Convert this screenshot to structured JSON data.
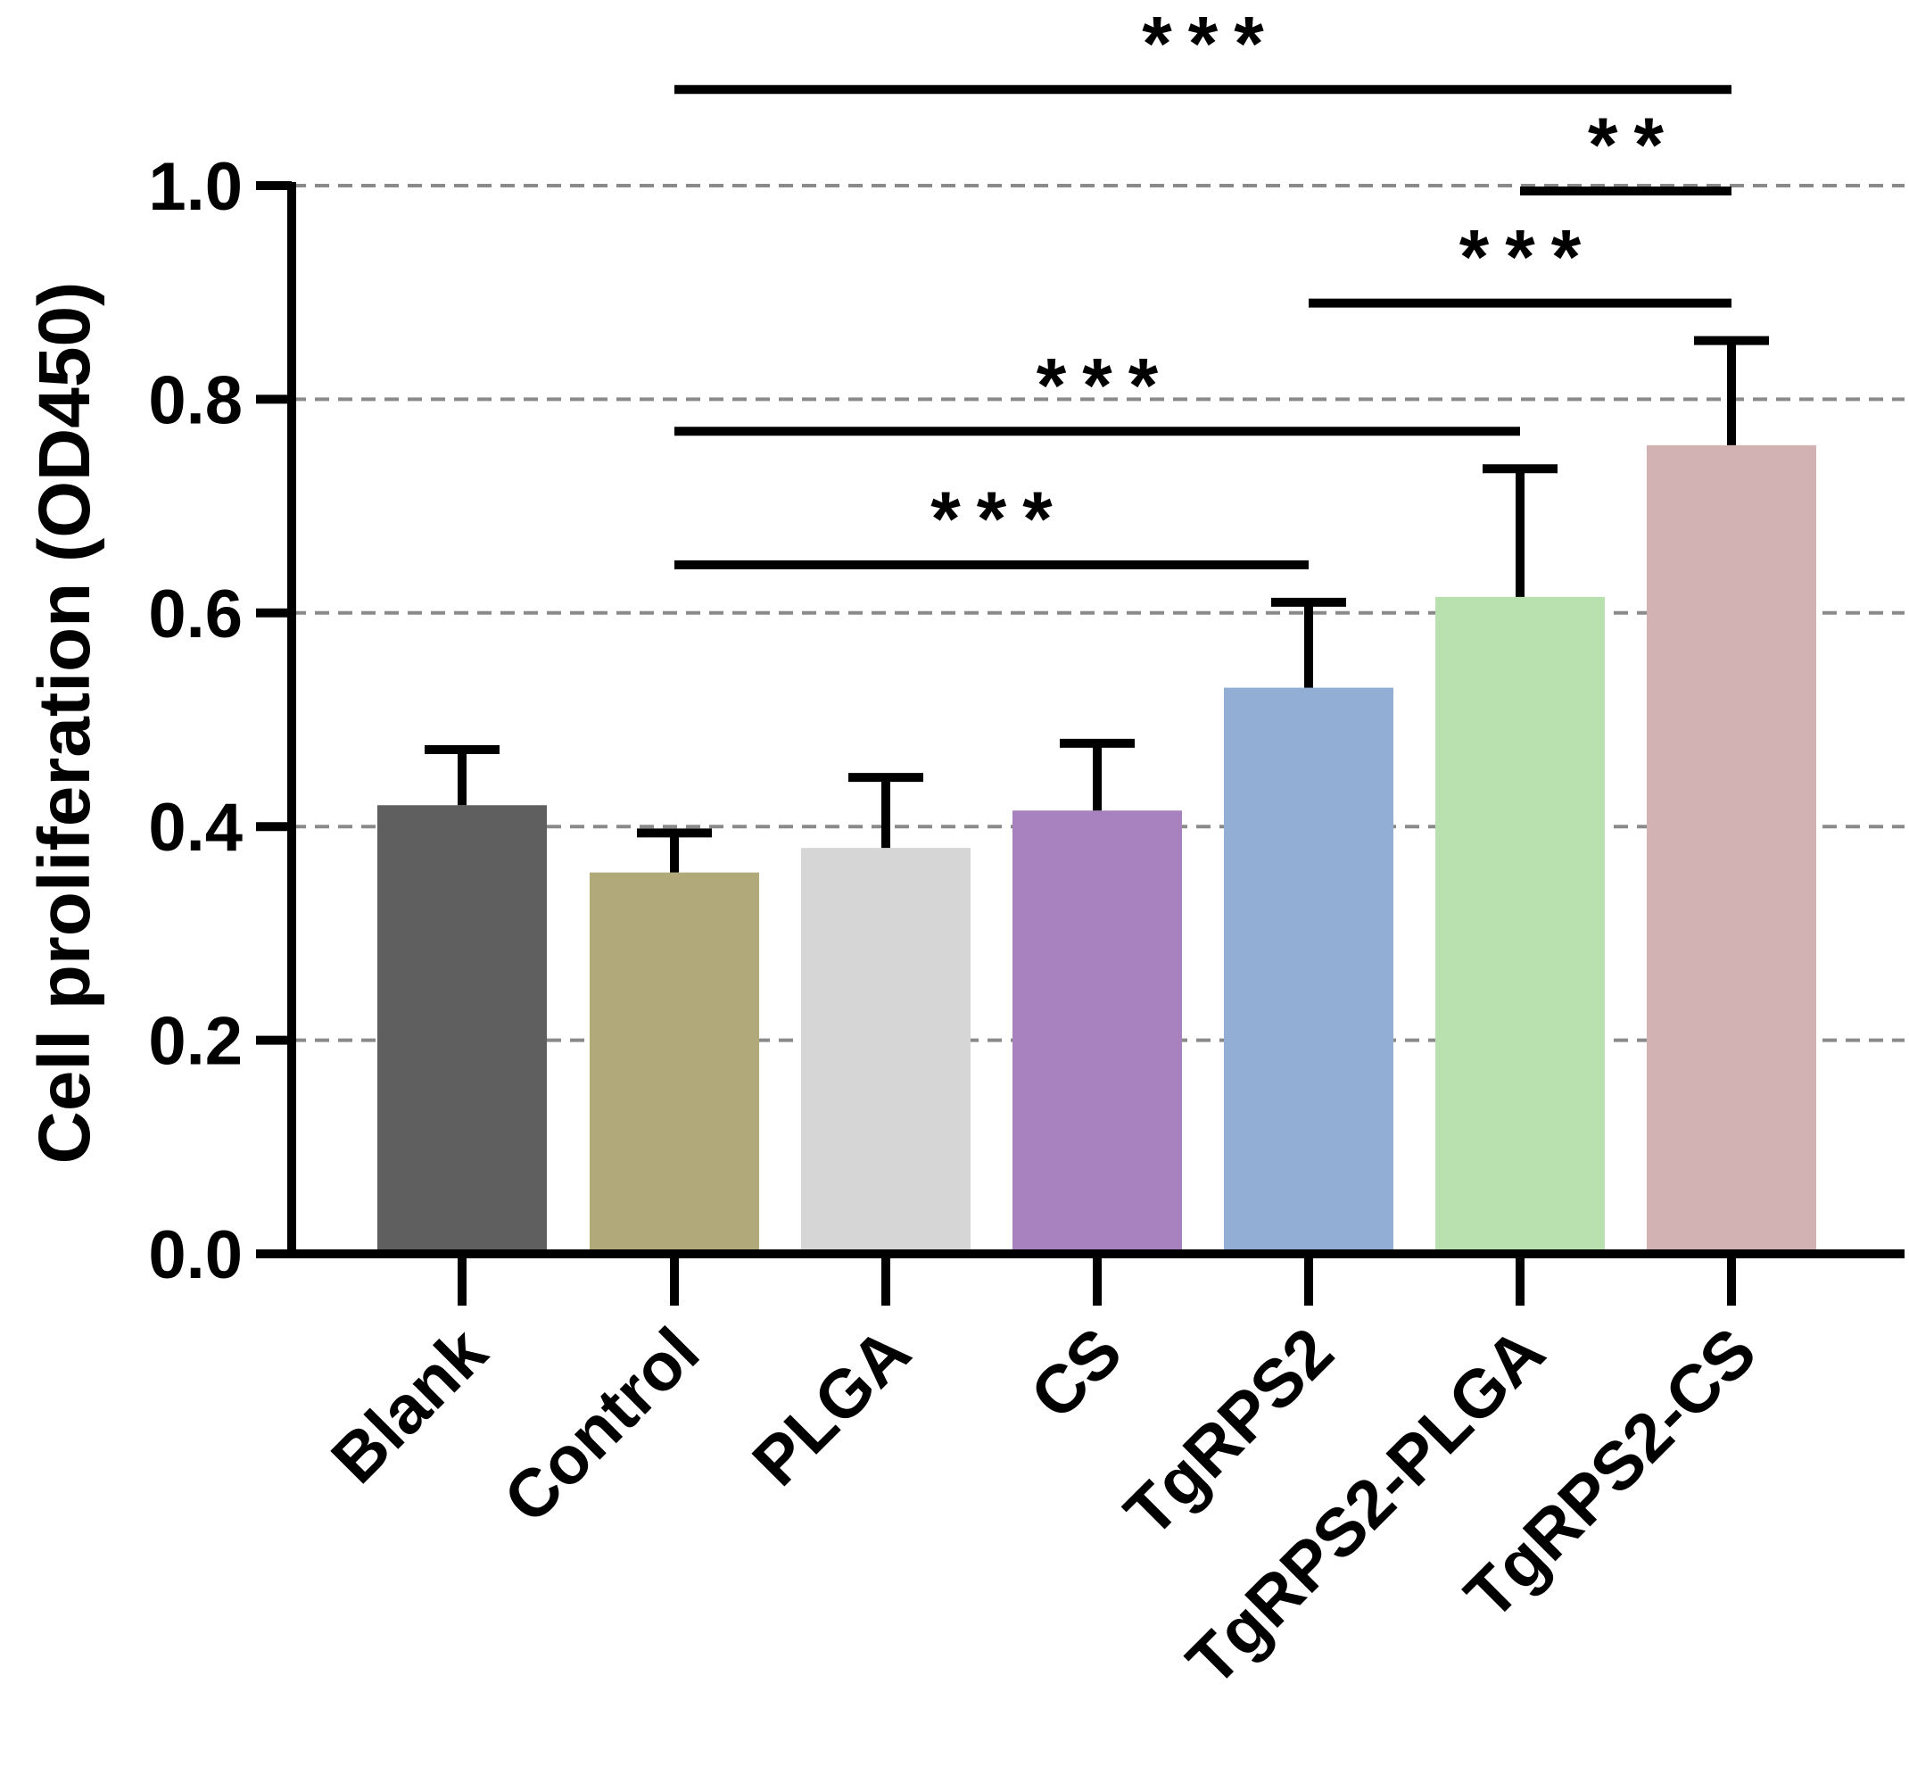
{
  "chart_data": {
    "type": "bar",
    "title": "",
    "xlabel": "",
    "ylabel": "Cell proliferation (OD450)",
    "ylim": [
      0,
      1.0
    ],
    "yticks": [
      "0.0",
      "0.2",
      "0.4",
      "0.6",
      "0.8",
      "1.0"
    ],
    "yticks_values": [
      0,
      0.2,
      0.4,
      0.6,
      0.8,
      1.0
    ],
    "grid": "dashed horizontal",
    "categories": [
      "Blank",
      "Control",
      "PLGA",
      "CS",
      "TgRPS2",
      "TgRPS2-PLGA",
      "TgRPS2-CS"
    ],
    "values": [
      0.42,
      0.357,
      0.38,
      0.415,
      0.53,
      0.615,
      0.757
    ],
    "errors": [
      0.052,
      0.037,
      0.066,
      0.063,
      0.08,
      0.12,
      0.098
    ],
    "colors": [
      "#5f5f5f",
      "#b1a979",
      "#d6d6d6",
      "#a882be",
      "#92aed4",
      "#b9e1b0",
      "#d3b2b4"
    ],
    "significance": [
      {
        "from": "Control",
        "to": "TgRPS2",
        "label": "***",
        "y": 0.645
      },
      {
        "from": "Control",
        "to": "TgRPS2-PLGA",
        "label": "***",
        "y": 0.77
      },
      {
        "from": "TgRPS2",
        "to": "TgRPS2-CS",
        "label": "***",
        "y": 0.89
      },
      {
        "from": "TgRPS2-PLGA",
        "to": "TgRPS2-CS",
        "label": "**",
        "y": 0.995
      },
      {
        "from": "Control",
        "to": "TgRPS2-CS",
        "label": "***",
        "y": 1.09
      }
    ]
  }
}
